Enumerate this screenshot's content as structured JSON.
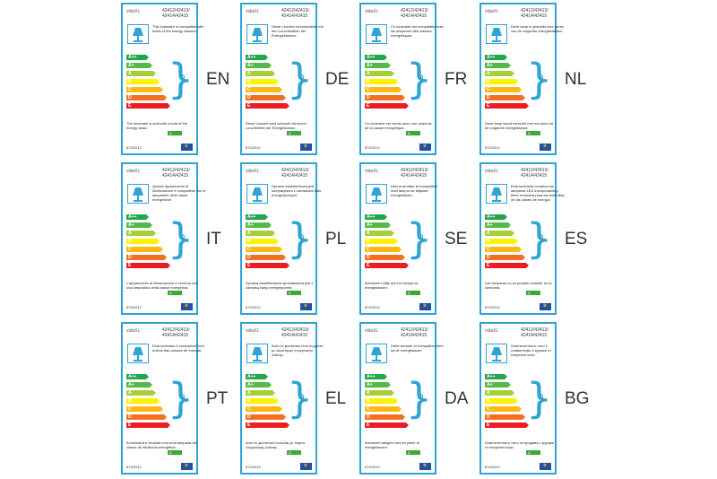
{
  "brand": "vidaXL",
  "model_line1": "42412/42413/",
  "model_line2": "42414/42415",
  "regulation": "874/2012",
  "bulb_class": "A",
  "classes": [
    {
      "label": "A++",
      "color": "#22a64b"
    },
    {
      "label": "A+",
      "color": "#54b948"
    },
    {
      "label": "A",
      "color": "#a6ce39"
    },
    {
      "label": "B",
      "color": "#fff200"
    },
    {
      "label": "C",
      "color": "#fdb913"
    },
    {
      "label": "D",
      "color": "#f37021"
    },
    {
      "label": "E",
      "color": "#ed1c24"
    }
  ],
  "labels": [
    {
      "code": "EN",
      "compat": "This luminaire is compatible with bulbs of the energy classes:",
      "sold": "The luminaire is sold with a bulb of the energy class:"
    },
    {
      "code": "DE",
      "compat": "Diese Leuchte ist kompatibel mit den Leuchtmitteln der Energieklassen:",
      "sold": "Diese Leuchte wird verkauft mit einem Leuchtmittel der Energieklasse:"
    },
    {
      "code": "FR",
      "compat": "Ce luminaire est compatible avec les ampoules des classes énergétiques:",
      "sold": "Ce luminaire est vendu avec une ampoule de la classe énergétique:"
    },
    {
      "code": "NL",
      "compat": "Deze lamp is geschikt voor peren van de volgende energieklassen:",
      "sold": "Deze lamp wordt verkocht met een peer uit de volgende energieklasse:"
    },
    {
      "code": "IT",
      "compat": "Questo apparecchio di illuminazione è compatibile con le lampadine delle classi energetiche:",
      "sold": "L'apparecchio di illuminazione è venduto con una lampadina della classe energetica:"
    },
    {
      "code": "PL",
      "compat": "Oprawa oświetleniowa jest kompatybilna z żarówkami klas energetycznych:",
      "sold": "Oprawa oświetleniowa sprzedawana jest z żarówką klasy energetycznej:"
    },
    {
      "code": "SE",
      "compat": "Denna armatur är kompatibel med lampor av följande energiklasser:",
      "sold": "Armaturen säljs med en lampa av energiklassen:"
    },
    {
      "code": "ES",
      "compat": "Esta luminaria combina las lámparas LED incorporadas y tiene exclusiva para las bombillas de las clases de energía:",
      "sold": "Las lámparas no se pueden cambiar en la luminaria."
    },
    {
      "code": "PT",
      "compat": "Esta luminária é compatível com bulbos das classes de energia:",
      "sold": "A luminária é vendida com uma lâmpada da classe de eficiência energética:"
    },
    {
      "code": "EL",
      "compat": "Αυτό το φωτιστικό είναι συμβατό με λαμπτήρες ενεργειακής κλάσης:",
      "sold": "Αυτό το φωτιστικό πωλείται με λάμπα ενεργειακής κλάσης:"
    },
    {
      "code": "DA",
      "compat": "Dette armatur er kompatibel med lys af energiklasser:",
      "sold": "Armaturet sælges med en pære af energiklassen:"
    },
    {
      "code": "BG",
      "compat": "Осветителното тяло е съвместимо с крушки от енергиен клас:",
      "sold": "Осветителното тяло се продава с крушка от енергиен клас:"
    }
  ]
}
